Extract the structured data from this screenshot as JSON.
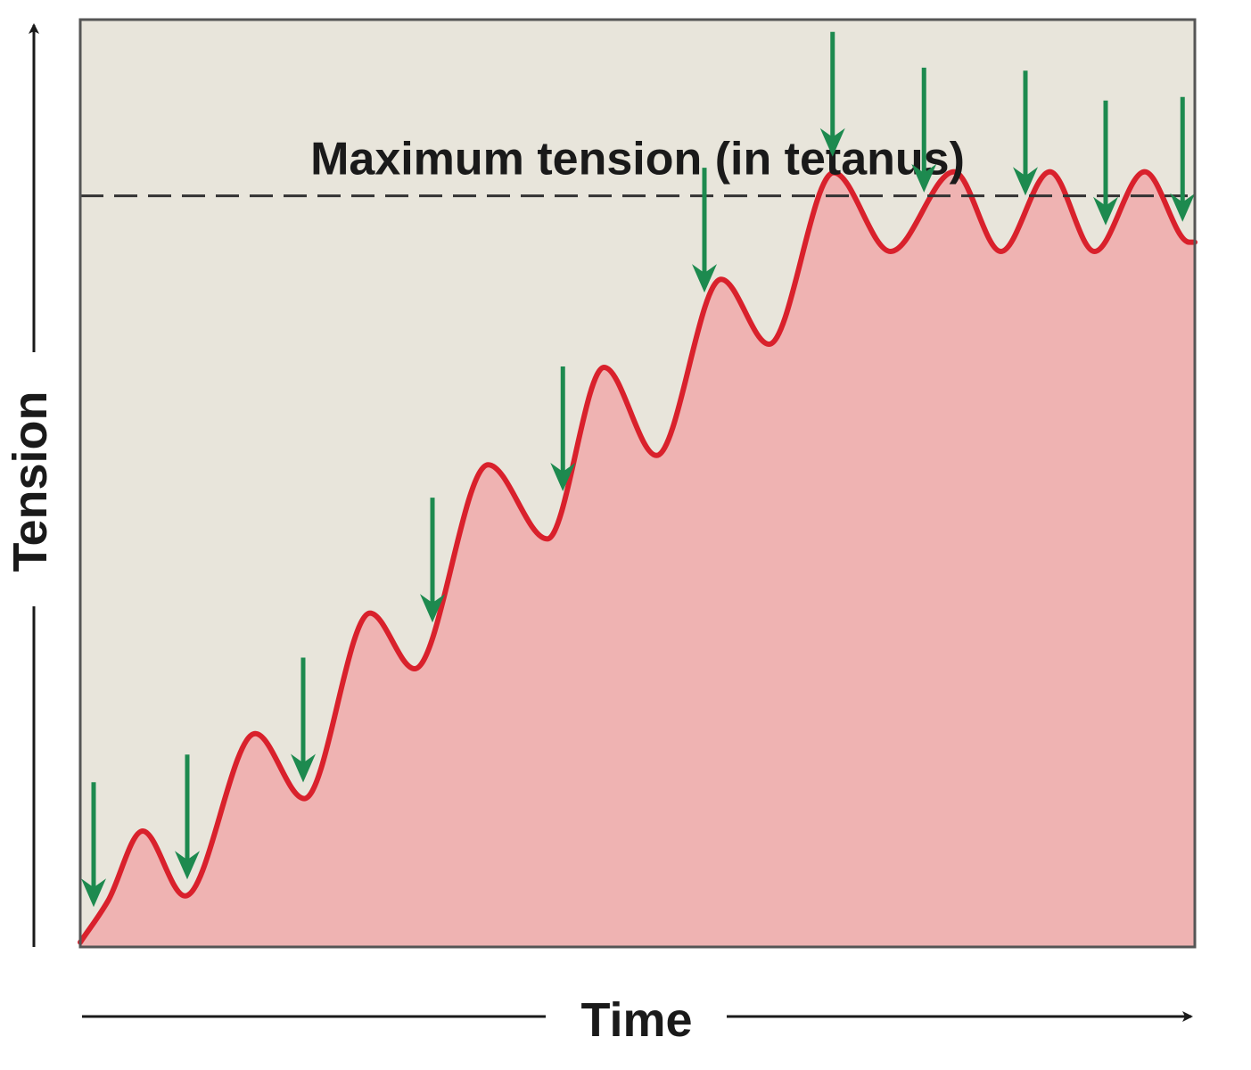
{
  "chart_data": {
    "type": "area",
    "title": "",
    "xlabel": "Time",
    "ylabel": "Tension",
    "annotation": "Maximum tension (in tetanus)",
    "max_tension": 0.81,
    "xlim": [
      0,
      1
    ],
    "ylim": [
      0,
      1
    ],
    "grid": false,
    "series": [
      {
        "x": [
          0,
          0.025,
          0.056,
          0.094,
          0.157,
          0.201,
          0.26,
          0.3,
          0.366,
          0.419,
          0.47,
          0.517,
          0.575,
          0.618,
          0.676,
          0.727,
          0.784,
          0.826,
          0.87,
          0.91,
          0.955,
          0.995,
          1
        ],
        "y": [
          0.005,
          0.05,
          0.125,
          0.055,
          0.23,
          0.16,
          0.36,
          0.3,
          0.52,
          0.44,
          0.625,
          0.53,
          0.72,
          0.65,
          0.835,
          0.75,
          0.836,
          0.75,
          0.836,
          0.75,
          0.836,
          0.76,
          0.76
        ],
        "color": "#d9212c",
        "fill": "#efb3b2"
      }
    ],
    "stimuli_x": [
      0.012,
      0.096,
      0.2,
      0.316,
      0.433,
      0.56,
      0.675,
      0.757,
      0.848,
      0.92,
      0.989
    ],
    "colors": {
      "plot_bg": "#e8e5db",
      "curve": "#d9212c",
      "fill": "#efb3b2",
      "arrow": "#1d8a4f",
      "axis": "#1a1a1a"
    }
  }
}
